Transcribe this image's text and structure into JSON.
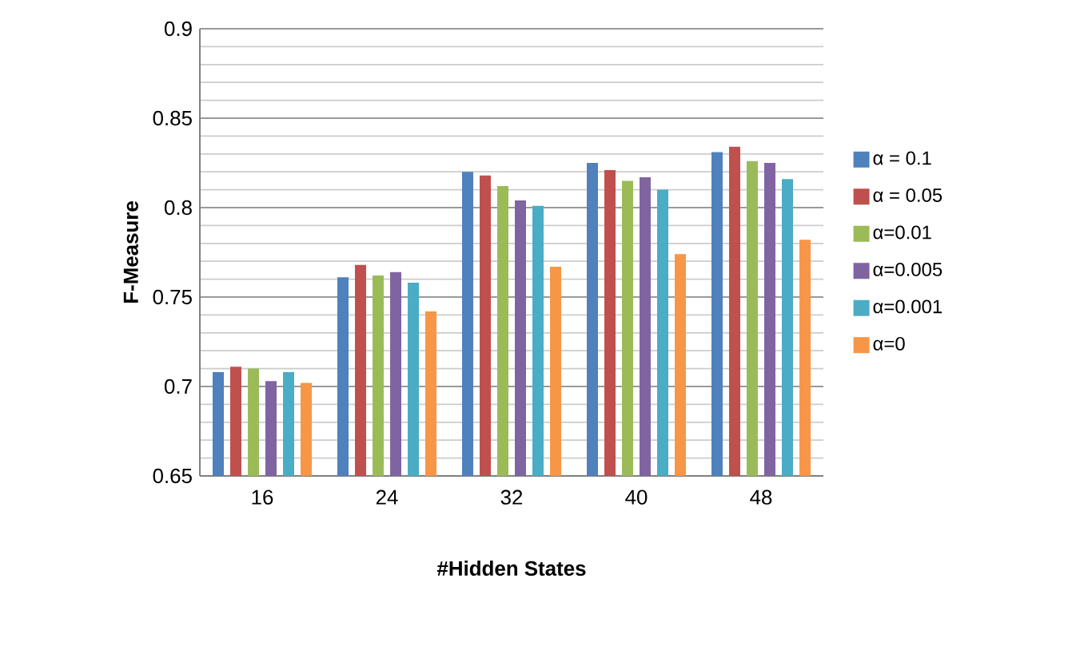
{
  "chart_data": {
    "type": "bar",
    "xlabel": "#Hidden States",
    "ylabel": "F-Measure",
    "categories": [
      "16",
      "24",
      "32",
      "40",
      "48"
    ],
    "series": [
      {
        "name": "α = 0.1",
        "color": "#4f81bd",
        "values": [
          0.708,
          0.761,
          0.82,
          0.825,
          0.831
        ]
      },
      {
        "name": "α = 0.05",
        "color": "#c0504d",
        "values": [
          0.711,
          0.768,
          0.818,
          0.821,
          0.834
        ]
      },
      {
        "name": "α=0.01",
        "color": "#9bbb59",
        "values": [
          0.71,
          0.762,
          0.812,
          0.815,
          0.826
        ]
      },
      {
        "name": "α=0.005",
        "color": "#8064a2",
        "values": [
          0.703,
          0.764,
          0.804,
          0.817,
          0.825
        ]
      },
      {
        "name": "α=0.001",
        "color": "#4bacc6",
        "values": [
          0.708,
          0.758,
          0.801,
          0.81,
          0.816
        ]
      },
      {
        "name": "α=0",
        "color": "#f79646",
        "values": [
          0.702,
          0.742,
          0.767,
          0.774,
          0.782
        ]
      }
    ],
    "ylim": [
      0.65,
      0.9
    ],
    "yticks": [
      0.65,
      0.7,
      0.75,
      0.8,
      0.85,
      0.9
    ],
    "grid": true,
    "legend": "right"
  }
}
